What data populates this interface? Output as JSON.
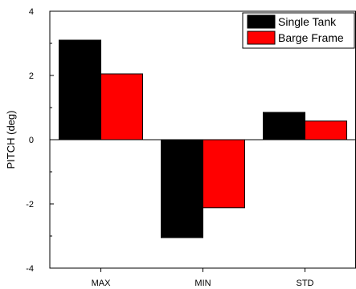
{
  "chart_data": {
    "type": "bar",
    "categories": [
      "MAX",
      "MIN",
      "STD"
    ],
    "series": [
      {
        "name": "Single Tank",
        "values": [
          3.1,
          -3.05,
          0.85
        ],
        "color": "#000000"
      },
      {
        "name": "Barge Frame",
        "values": [
          2.05,
          -2.12,
          0.58
        ],
        "color": "#ff0000"
      }
    ],
    "title": "",
    "xlabel": "",
    "ylabel": "PITCH (deg)",
    "ylim": [
      -4,
      4
    ],
    "yticks": [
      -4,
      -2,
      0,
      2,
      4
    ],
    "ytick_labels": [
      "-4",
      "-2",
      "0",
      "2",
      "4"
    ],
    "grid": false,
    "zero_line": true,
    "legend_position": "top-right"
  }
}
